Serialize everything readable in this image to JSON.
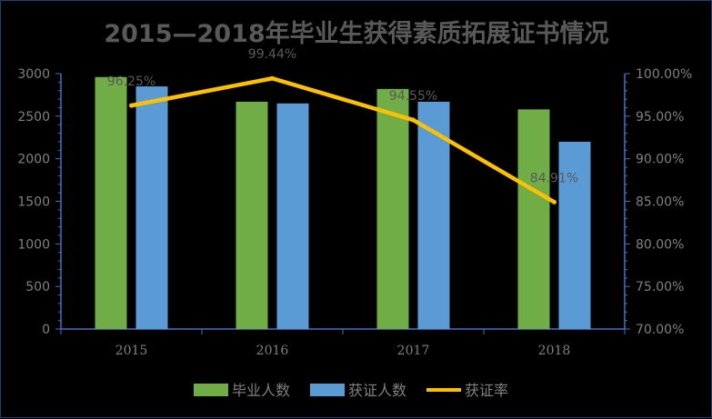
{
  "chart_data": {
    "type": "bar",
    "title": "2015—2018年毕业生获得素质拓展证书情况",
    "categories": [
      "2015",
      "2016",
      "2017",
      "2018"
    ],
    "series": [
      {
        "name": "毕业人数",
        "kind": "bar",
        "axis": "left",
        "color": "#70ad47",
        "values": [
          2960,
          2670,
          2820,
          2580
        ]
      },
      {
        "name": "获证人数",
        "kind": "bar",
        "axis": "left",
        "color": "#5b9bd5",
        "values": [
          2850,
          2650,
          2670,
          2200
        ]
      },
      {
        "name": "获证率",
        "kind": "line",
        "axis": "right",
        "color": "#ffc000",
        "values": [
          96.25,
          99.44,
          94.55,
          84.91
        ]
      }
    ],
    "data_labels": [
      "96.25%",
      "99.44%",
      "94.55%",
      "84.91%"
    ],
    "y_left": {
      "min": 0,
      "max": 3000,
      "ticks": [
        "0",
        "500",
        "1000",
        "1500",
        "2000",
        "2500",
        "3000"
      ]
    },
    "y_right": {
      "min": 70,
      "max": 100,
      "ticks": [
        "70.00%",
        "75.00%",
        "80.00%",
        "85.00%",
        "90.00%",
        "95.00%",
        "100.00%"
      ]
    },
    "legend_position": "bottom",
    "grid": false
  }
}
